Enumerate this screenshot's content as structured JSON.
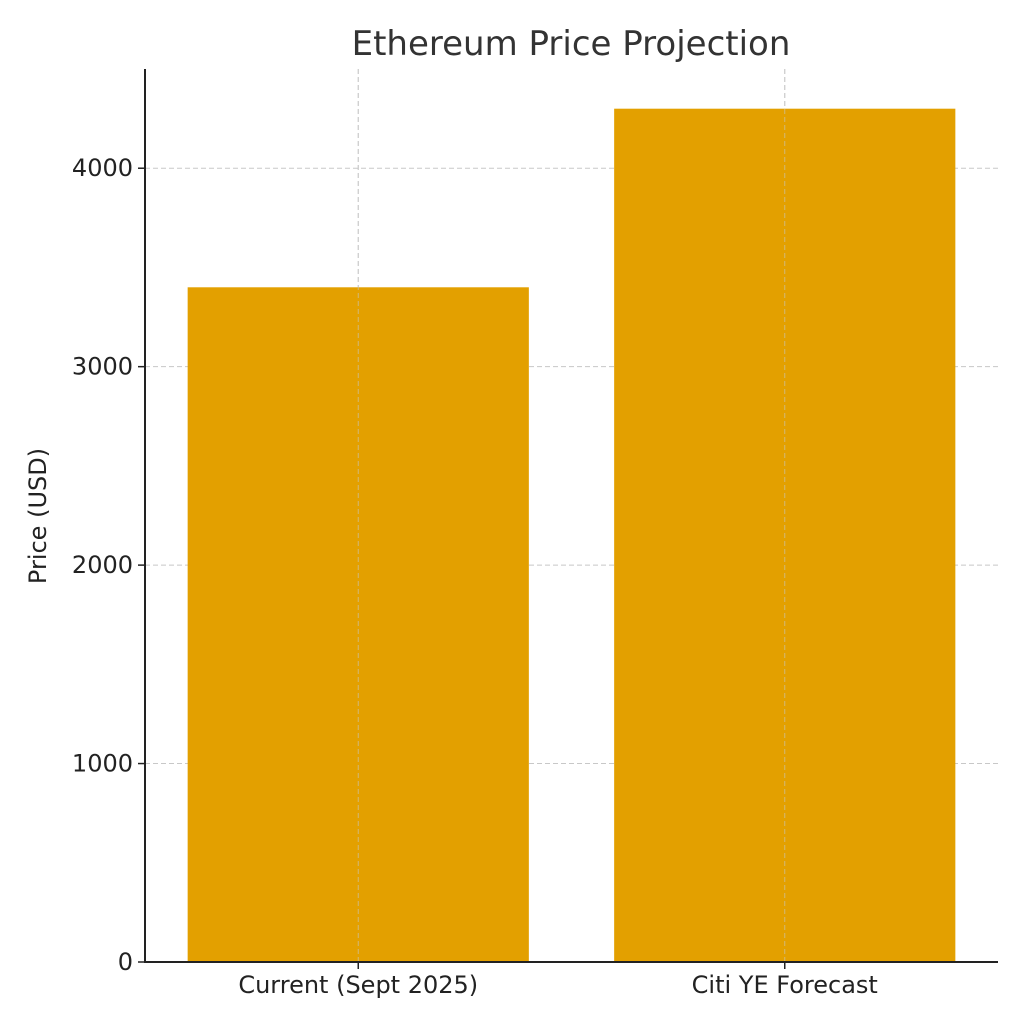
{
  "chart_data": {
    "type": "bar",
    "title": "Ethereum Price Projection",
    "xlabel": "",
    "ylabel": "Price (USD)",
    "categories": [
      "Current (Sept 2025)",
      "Citi YE Forecast"
    ],
    "values": [
      3400,
      4300
    ],
    "ylim": [
      0,
      4500
    ],
    "yticks": [
      0,
      1000,
      2000,
      3000,
      4000
    ],
    "ytick_labels": [
      "0",
      "1000",
      "2000",
      "3000",
      "4000"
    ],
    "grid": true,
    "legend": "none"
  },
  "colors": {
    "bar": "#e3a000",
    "grid": "#c8c8c8",
    "axis": "#222222",
    "text": "#222222"
  }
}
